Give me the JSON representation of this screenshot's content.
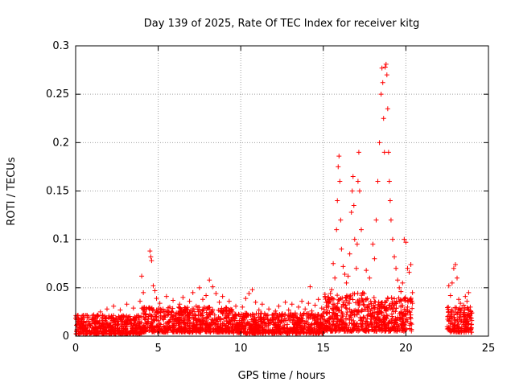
{
  "chart_data": {
    "type": "scatter",
    "title": "Day 139 of 2025, Rate Of TEC Index for receiver kitg",
    "xlabel": "GPS time / hours",
    "ylabel": "ROTI / TECUs",
    "xlim": [
      0,
      25
    ],
    "ylim": [
      0,
      0.3
    ],
    "grid": true,
    "legend": "none",
    "marker": "+",
    "color": "#ff0000",
    "xticks": [
      0,
      5,
      10,
      15,
      20,
      25
    ],
    "xtick_labels": [
      "0",
      "5",
      "10",
      "15",
      "20",
      "25"
    ],
    "yticks": [
      0,
      0.05,
      0.1,
      0.15,
      0.2,
      0.25,
      0.3
    ],
    "ytick_labels": [
      "0",
      "0.05",
      "0.1",
      "0.15",
      "0.2",
      "0.25",
      "0.3"
    ],
    "series": [
      {
        "name": "ROTI",
        "points": [
          [
            0.1,
            0.012
          ],
          [
            0.2,
            0.018
          ],
          [
            0.3,
            0.009
          ],
          [
            0.4,
            0.021
          ],
          [
            0.5,
            0.014
          ],
          [
            0.7,
            0.019
          ],
          [
            0.9,
            0.011
          ],
          [
            1.1,
            0.022
          ],
          [
            1.3,
            0.016
          ],
          [
            1.5,
            0.025
          ],
          [
            1.7,
            0.013
          ],
          [
            1.9,
            0.028
          ],
          [
            2.1,
            0.018
          ],
          [
            2.3,
            0.031
          ],
          [
            2.5,
            0.015
          ],
          [
            2.7,
            0.027
          ],
          [
            2.9,
            0.02
          ],
          [
            3.1,
            0.033
          ],
          [
            3.3,
            0.017
          ],
          [
            3.5,
            0.029
          ],
          [
            3.7,
            0.021
          ],
          [
            3.9,
            0.036
          ],
          [
            4.0,
            0.062
          ],
          [
            4.1,
            0.045
          ],
          [
            4.3,
            0.028
          ],
          [
            4.5,
            0.088
          ],
          [
            4.55,
            0.082
          ],
          [
            4.6,
            0.078
          ],
          [
            4.7,
            0.052
          ],
          [
            4.8,
            0.047
          ],
          [
            4.9,
            0.039
          ],
          [
            5.1,
            0.034
          ],
          [
            5.3,
            0.025
          ],
          [
            5.5,
            0.041
          ],
          [
            5.7,
            0.03
          ],
          [
            5.9,
            0.037
          ],
          [
            6.1,
            0.024
          ],
          [
            6.3,
            0.033
          ],
          [
            6.5,
            0.04
          ],
          [
            6.7,
            0.028
          ],
          [
            6.9,
            0.036
          ],
          [
            7.1,
            0.045
          ],
          [
            7.3,
            0.031
          ],
          [
            7.5,
            0.05
          ],
          [
            7.7,
            0.038
          ],
          [
            7.9,
            0.042
          ],
          [
            8.1,
            0.058
          ],
          [
            8.3,
            0.051
          ],
          [
            8.5,
            0.044
          ],
          [
            8.7,
            0.035
          ],
          [
            8.9,
            0.041
          ],
          [
            9.1,
            0.029
          ],
          [
            9.3,
            0.036
          ],
          [
            9.5,
            0.025
          ],
          [
            9.7,
            0.031
          ],
          [
            9.9,
            0.022
          ],
          [
            10.1,
            0.03
          ],
          [
            10.3,
            0.039
          ],
          [
            10.5,
            0.044
          ],
          [
            10.7,
            0.048
          ],
          [
            10.9,
            0.035
          ],
          [
            11.1,
            0.027
          ],
          [
            11.3,
            0.033
          ],
          [
            11.5,
            0.022
          ],
          [
            11.7,
            0.028
          ],
          [
            11.9,
            0.019
          ],
          [
            12.1,
            0.026
          ],
          [
            12.3,
            0.031
          ],
          [
            12.5,
            0.023
          ],
          [
            12.7,
            0.035
          ],
          [
            12.9,
            0.027
          ],
          [
            13.1,
            0.033
          ],
          [
            13.3,
            0.024
          ],
          [
            13.5,
            0.03
          ],
          [
            13.7,
            0.036
          ],
          [
            13.9,
            0.028
          ],
          [
            14.1,
            0.034
          ],
          [
            14.2,
            0.051
          ],
          [
            14.3,
            0.026
          ],
          [
            14.5,
            0.032
          ],
          [
            14.7,
            0.038
          ],
          [
            14.9,
            0.029
          ],
          [
            15.1,
            0.041
          ],
          [
            15.3,
            0.035
          ],
          [
            15.5,
            0.048
          ],
          [
            15.6,
            0.075
          ],
          [
            15.7,
            0.06
          ],
          [
            15.8,
            0.11
          ],
          [
            15.85,
            0.14
          ],
          [
            15.9,
            0.175
          ],
          [
            15.95,
            0.186
          ],
          [
            16.0,
            0.16
          ],
          [
            16.05,
            0.12
          ],
          [
            16.1,
            0.09
          ],
          [
            16.2,
            0.072
          ],
          [
            16.3,
            0.064
          ],
          [
            16.4,
            0.055
          ],
          [
            16.5,
            0.062
          ],
          [
            16.6,
            0.085
          ],
          [
            16.7,
            0.128
          ],
          [
            16.75,
            0.15
          ],
          [
            16.8,
            0.165
          ],
          [
            16.85,
            0.135
          ],
          [
            16.9,
            0.1
          ],
          [
            17.0,
            0.07
          ],
          [
            17.05,
            0.095
          ],
          [
            17.1,
            0.16
          ],
          [
            17.15,
            0.19
          ],
          [
            17.2,
            0.15
          ],
          [
            17.3,
            0.11
          ],
          [
            17.4,
            0.045
          ],
          [
            17.6,
            0.068
          ],
          [
            17.8,
            0.06
          ],
          [
            18.0,
            0.095
          ],
          [
            18.1,
            0.08
          ],
          [
            18.2,
            0.12
          ],
          [
            18.3,
            0.16
          ],
          [
            18.4,
            0.2
          ],
          [
            18.5,
            0.25
          ],
          [
            18.55,
            0.277
          ],
          [
            18.6,
            0.262
          ],
          [
            18.65,
            0.225
          ],
          [
            18.7,
            0.19
          ],
          [
            18.75,
            0.278
          ],
          [
            18.8,
            0.281
          ],
          [
            18.85,
            0.27
          ],
          [
            18.9,
            0.235
          ],
          [
            18.95,
            0.19
          ],
          [
            19.0,
            0.16
          ],
          [
            19.05,
            0.14
          ],
          [
            19.1,
            0.12
          ],
          [
            19.2,
            0.1
          ],
          [
            19.3,
            0.082
          ],
          [
            19.4,
            0.07
          ],
          [
            19.5,
            0.058
          ],
          [
            19.6,
            0.05
          ],
          [
            19.7,
            0.046
          ],
          [
            19.8,
            0.055
          ],
          [
            19.9,
            0.1
          ],
          [
            20.0,
            0.097
          ],
          [
            20.1,
            0.07
          ],
          [
            20.2,
            0.066
          ],
          [
            20.3,
            0.074
          ],
          [
            20.4,
            0.045
          ],
          [
            22.6,
            0.052
          ],
          [
            22.7,
            0.042
          ],
          [
            22.8,
            0.055
          ],
          [
            22.9,
            0.07
          ],
          [
            23.0,
            0.074
          ],
          [
            23.1,
            0.06
          ],
          [
            23.2,
            0.038
          ],
          [
            23.3,
            0.034
          ],
          [
            23.4,
            0.029
          ],
          [
            23.5,
            0.032
          ],
          [
            23.6,
            0.041
          ],
          [
            23.7,
            0.036
          ],
          [
            23.8,
            0.045
          ],
          [
            23.9,
            0.03
          ],
          [
            24.0,
            0.024
          ]
        ]
      }
    ],
    "dense_bands": [
      {
        "x_from": 0.0,
        "x_to": 4.0,
        "y_min": 0.002,
        "y_max": 0.022
      },
      {
        "x_from": 4.0,
        "x_to": 9.5,
        "y_min": 0.004,
        "y_max": 0.03
      },
      {
        "x_from": 9.5,
        "x_to": 15.0,
        "y_min": 0.003,
        "y_max": 0.024
      },
      {
        "x_from": 15.0,
        "x_to": 17.5,
        "y_min": 0.005,
        "y_max": 0.045
      },
      {
        "x_from": 17.5,
        "x_to": 20.4,
        "y_min": 0.005,
        "y_max": 0.04
      },
      {
        "x_from": 22.5,
        "x_to": 24.0,
        "y_min": 0.004,
        "y_max": 0.03
      }
    ]
  }
}
